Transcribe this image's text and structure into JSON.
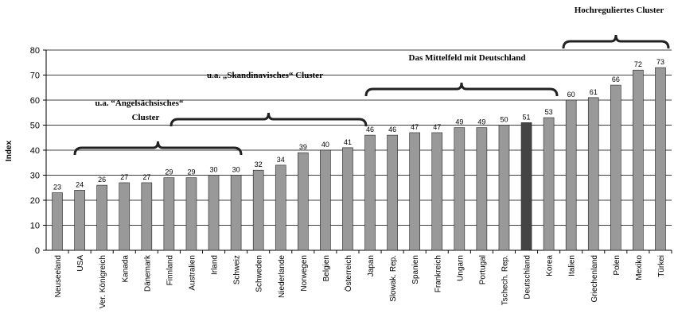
{
  "chart_data": {
    "type": "bar",
    "y_label": "Index",
    "categories": [
      "Neuseeland",
      "USA",
      "Ver. Königreich",
      "Kanada",
      "Dänemark",
      "Finnland",
      "Australien",
      "Irland",
      "Schweiz",
      "Schweden",
      "Niederlande",
      "Norwegen",
      "Belgien",
      "Österreich",
      "Japan",
      "Slowak. Rep.",
      "Spanien",
      "Frankreich",
      "Ungarn",
      "Portugal",
      "Tschech. Rep.",
      "Deutschland",
      "Korea",
      "Italien",
      "Griechenland",
      "Polen",
      "Mexiko",
      "Türkei"
    ],
    "values": [
      23,
      24,
      26,
      27,
      27,
      29,
      29,
      30,
      30,
      32,
      34,
      39,
      40,
      41,
      46,
      46,
      47,
      47,
      49,
      49,
      50,
      51,
      53,
      60,
      61,
      66,
      72,
      73
    ],
    "colors": [
      "#999999",
      "#999999",
      "#999999",
      "#999999",
      "#999999",
      "#999999",
      "#999999",
      "#999999",
      "#999999",
      "#999999",
      "#999999",
      "#999999",
      "#999999",
      "#999999",
      "#999999",
      "#999999",
      "#999999",
      "#999999",
      "#999999",
      "#999999",
      "#999999",
      "#444444",
      "#999999",
      "#999999",
      "#999999",
      "#999999",
      "#999999",
      "#999999"
    ],
    "ylim": [
      0,
      80
    ],
    "yticks": [
      0,
      10,
      20,
      30,
      40,
      50,
      60,
      70,
      80
    ],
    "grid": true,
    "annotations": [
      {
        "lines": [
          "u.a. “Angelsächsisches“",
          "Cluster"
        ]
      },
      {
        "lines": [
          "u.a. „Skandinavisches“ Cluster"
        ]
      },
      {
        "lines": [
          "Das Mittelfeld mit Deutschland"
        ]
      },
      {
        "lines": [
          "Hochreguliertes Cluster"
        ]
      }
    ]
  }
}
